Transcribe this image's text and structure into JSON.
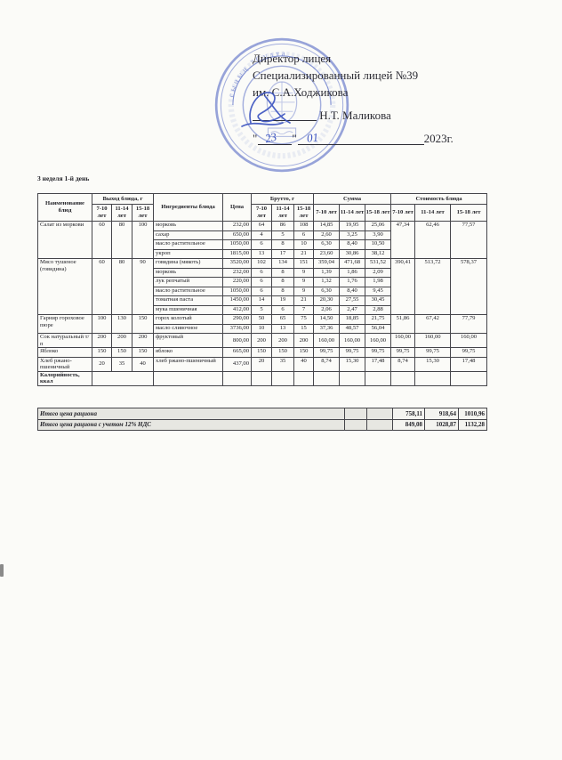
{
  "page": {
    "week_label": "3 неделя 1-й день"
  },
  "header": {
    "line1": "Директор лицея",
    "line2": "Специализированный лицей №39",
    "line3": "им. С.А.Ходжикова",
    "director_name": "Н.Т. Маликова",
    "quote": "\"",
    "date_day": "23",
    "date_month": "01",
    "date_year": "2023г."
  },
  "stamp": {
    "arc_text": "сының \"Султа",
    "color": "#5b6fc7"
  },
  "colors": {
    "stamp_blue": "#5b6fc7",
    "ink_blue": "#3a52c0",
    "border": "#45454a",
    "totals_bg": "#e7e7e2"
  },
  "table": {
    "headers": {
      "name": "Наименование блюд",
      "output_group": "Выход блюда, г",
      "ingredients": "Ингредиенты блюда",
      "price": "Цена",
      "brutto_group": "Брутто, г",
      "sum_group": "Сумма",
      "cost_group": "Стоимость блюда",
      "ages": [
        "7-10 лет",
        "11-14 лет",
        "15-18 лет"
      ]
    },
    "dishes": [
      {
        "name": "Салат из моркови",
        "output": [
          "60",
          "80",
          "100"
        ],
        "rows": [
          {
            "ingredient": "морковь",
            "price": "232,00",
            "brutto": [
              "64",
              "86",
              "108"
            ],
            "sum": [
              "14,85",
              "19,95",
              "25,06"
            ]
          },
          {
            "ingredient": "сахар",
            "price": "650,00",
            "brutto": [
              "4",
              "5",
              "6"
            ],
            "sum": [
              "2,60",
              "3,25",
              "3,90"
            ]
          },
          {
            "ingredient": "масло растительное",
            "price": "1050,00",
            "brutto": [
              "6",
              "8",
              "10"
            ],
            "sum": [
              "6,30",
              "8,40",
              "10,50"
            ]
          },
          {
            "ingredient": "укроп",
            "price": "1815,00",
            "brutto": [
              "13",
              "17",
              "21"
            ],
            "sum": [
              "23,60",
              "30,86",
              "38,12"
            ]
          }
        ],
        "cost": [
          "47,34",
          "62,46",
          "77,57"
        ]
      },
      {
        "name": "Мясо тушеное (говядина)",
        "output": [
          "60",
          "80",
          "90"
        ],
        "rows": [
          {
            "ingredient": "говядина (мякоть)",
            "price": "3520,00",
            "brutto": [
              "102",
              "134",
              "151"
            ],
            "sum": [
              "359,04",
              "471,68",
              "531,52"
            ]
          },
          {
            "ingredient": "морковь",
            "price": "232,00",
            "brutto": [
              "6",
              "8",
              "9"
            ],
            "sum": [
              "1,39",
              "1,86",
              "2,09"
            ]
          },
          {
            "ingredient": "лук репчатый",
            "price": "220,00",
            "brutto": [
              "6",
              "8",
              "9"
            ],
            "sum": [
              "1,32",
              "1,76",
              "1,98"
            ]
          },
          {
            "ingredient": "масло растительное",
            "price": "1050,00",
            "brutto": [
              "6",
              "8",
              "9"
            ],
            "sum": [
              "6,30",
              "8,40",
              "9,45"
            ]
          },
          {
            "ingredient": "томатная паста",
            "price": "1450,00",
            "brutto": [
              "14",
              "19",
              "21"
            ],
            "sum": [
              "20,30",
              "27,55",
              "30,45"
            ]
          },
          {
            "ingredient": "мука пшеничная",
            "price": "412,00",
            "brutto": [
              "5",
              "6",
              "7"
            ],
            "sum": [
              "2,06",
              "2,47",
              "2,88"
            ]
          }
        ],
        "cost": [
          "390,41",
          "513,72",
          "578,37"
        ]
      },
      {
        "name": "Гарнир гороховое пюре",
        "output": [
          "100",
          "130",
          "150"
        ],
        "rows": [
          {
            "ingredient": "горох колотый",
            "price": "290,00",
            "brutto": [
              "50",
              "65",
              "75"
            ],
            "sum": [
              "14,50",
              "18,85",
              "21,75"
            ]
          },
          {
            "ingredient": "масло сливочное",
            "price": "3736,00",
            "brutto": [
              "10",
              "13",
              "15"
            ],
            "sum": [
              "37,36",
              "48,57",
              "56,04"
            ]
          }
        ],
        "cost": [
          "51,86",
          "67,42",
          "77,79"
        ]
      },
      {
        "name": "Сок натуральный т/п",
        "output": [
          "200",
          "200",
          "200"
        ],
        "rows": [
          {
            "ingredient": "фруктовый",
            "price": "800,00",
            "brutto": [
              "200",
              "200",
              "200"
            ],
            "sum": [
              "160,00",
              "160,00",
              "160,00"
            ]
          }
        ],
        "cost": [
          "160,00",
          "160,00",
          "160,00"
        ]
      },
      {
        "name": "Яблоко",
        "output": [
          "150",
          "150",
          "150"
        ],
        "rows": [
          {
            "ingredient": "яблоко",
            "price": "665,00",
            "brutto": [
              "150",
              "150",
              "150"
            ],
            "sum": [
              "99,75",
              "99,75",
              "99,75"
            ]
          }
        ],
        "cost": [
          "99,75",
          "99,75",
          "99,75"
        ]
      },
      {
        "name": "Хлеб ржано-пшеничный",
        "output": [
          "20",
          "35",
          "40"
        ],
        "rows": [
          {
            "ingredient": "хлеб ржано-пшеничный",
            "price": "437,00",
            "brutto": [
              "20",
              "35",
              "40"
            ],
            "sum": [
              "8,74",
              "15,30",
              "17,48"
            ]
          }
        ],
        "cost": [
          "8,74",
          "15,30",
          "17,48"
        ]
      },
      {
        "name": "Калорийность, ккал",
        "output": [
          ""
        ],
        "rows": [
          {
            "ingredient": "",
            "price": "",
            "brutto": [
              "",
              "",
              ""
            ],
            "sum": [
              "",
              "",
              ""
            ]
          }
        ],
        "cost": [
          "",
          "",
          ""
        ]
      }
    ],
    "totals": [
      {
        "label": "Итого цена рациона",
        "values": [
          "758,11",
          "918,64",
          "1010,96"
        ]
      },
      {
        "label": "Итого цена рациона с учетом 12% НДС",
        "values": [
          "849,08",
          "1028,87",
          "1132,28"
        ]
      }
    ]
  }
}
